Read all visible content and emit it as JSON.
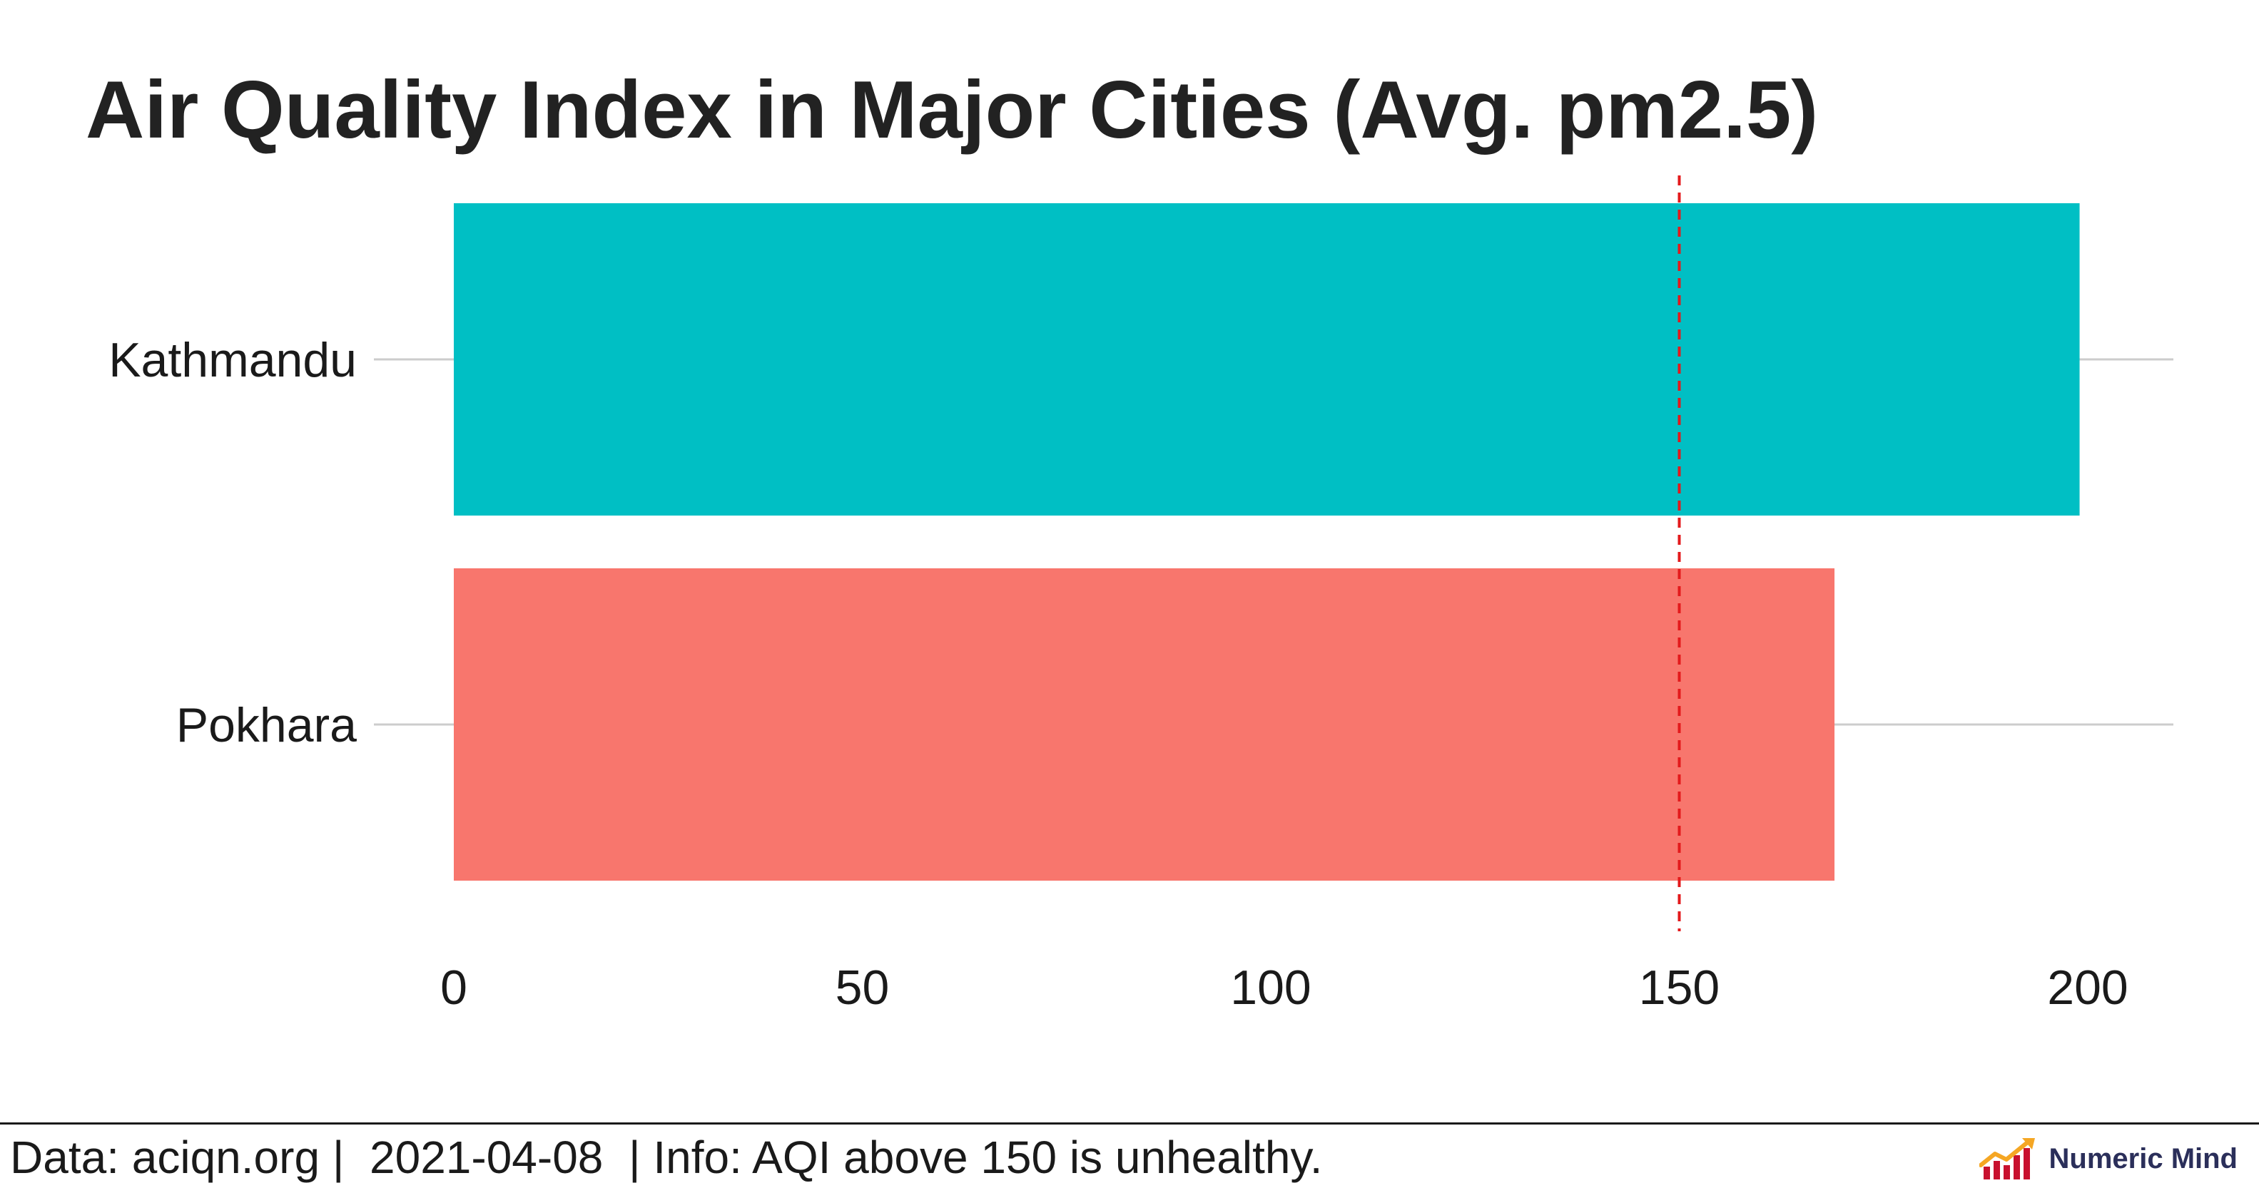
{
  "chart_data": {
    "type": "bar",
    "orientation": "horizontal",
    "title": "Air Quality Index in Major Cities (Avg. pm2.5)",
    "categories": [
      "Kathmandu",
      "Pokhara"
    ],
    "values": [
      199,
      169
    ],
    "colors": [
      "#00BFC4",
      "#F8766D"
    ],
    "xlim": [
      0,
      209
    ],
    "x_ticks": [
      0,
      50,
      100,
      150,
      200
    ],
    "reference_line": {
      "value": 150,
      "color": "#e31a1c",
      "style": "dashed"
    },
    "grid": "horizontal-major-only",
    "legend": "none"
  },
  "footer": {
    "caption": "Data: aciqn.org |  2021-04-08  | Info: AQI above 150 is unhealthy.",
    "brand": {
      "name": "Numeric Mind",
      "icon": "rising-chart-logo-icon",
      "colors": [
        "#f5a623",
        "#c8102e",
        "#2b2f5a"
      ]
    }
  }
}
